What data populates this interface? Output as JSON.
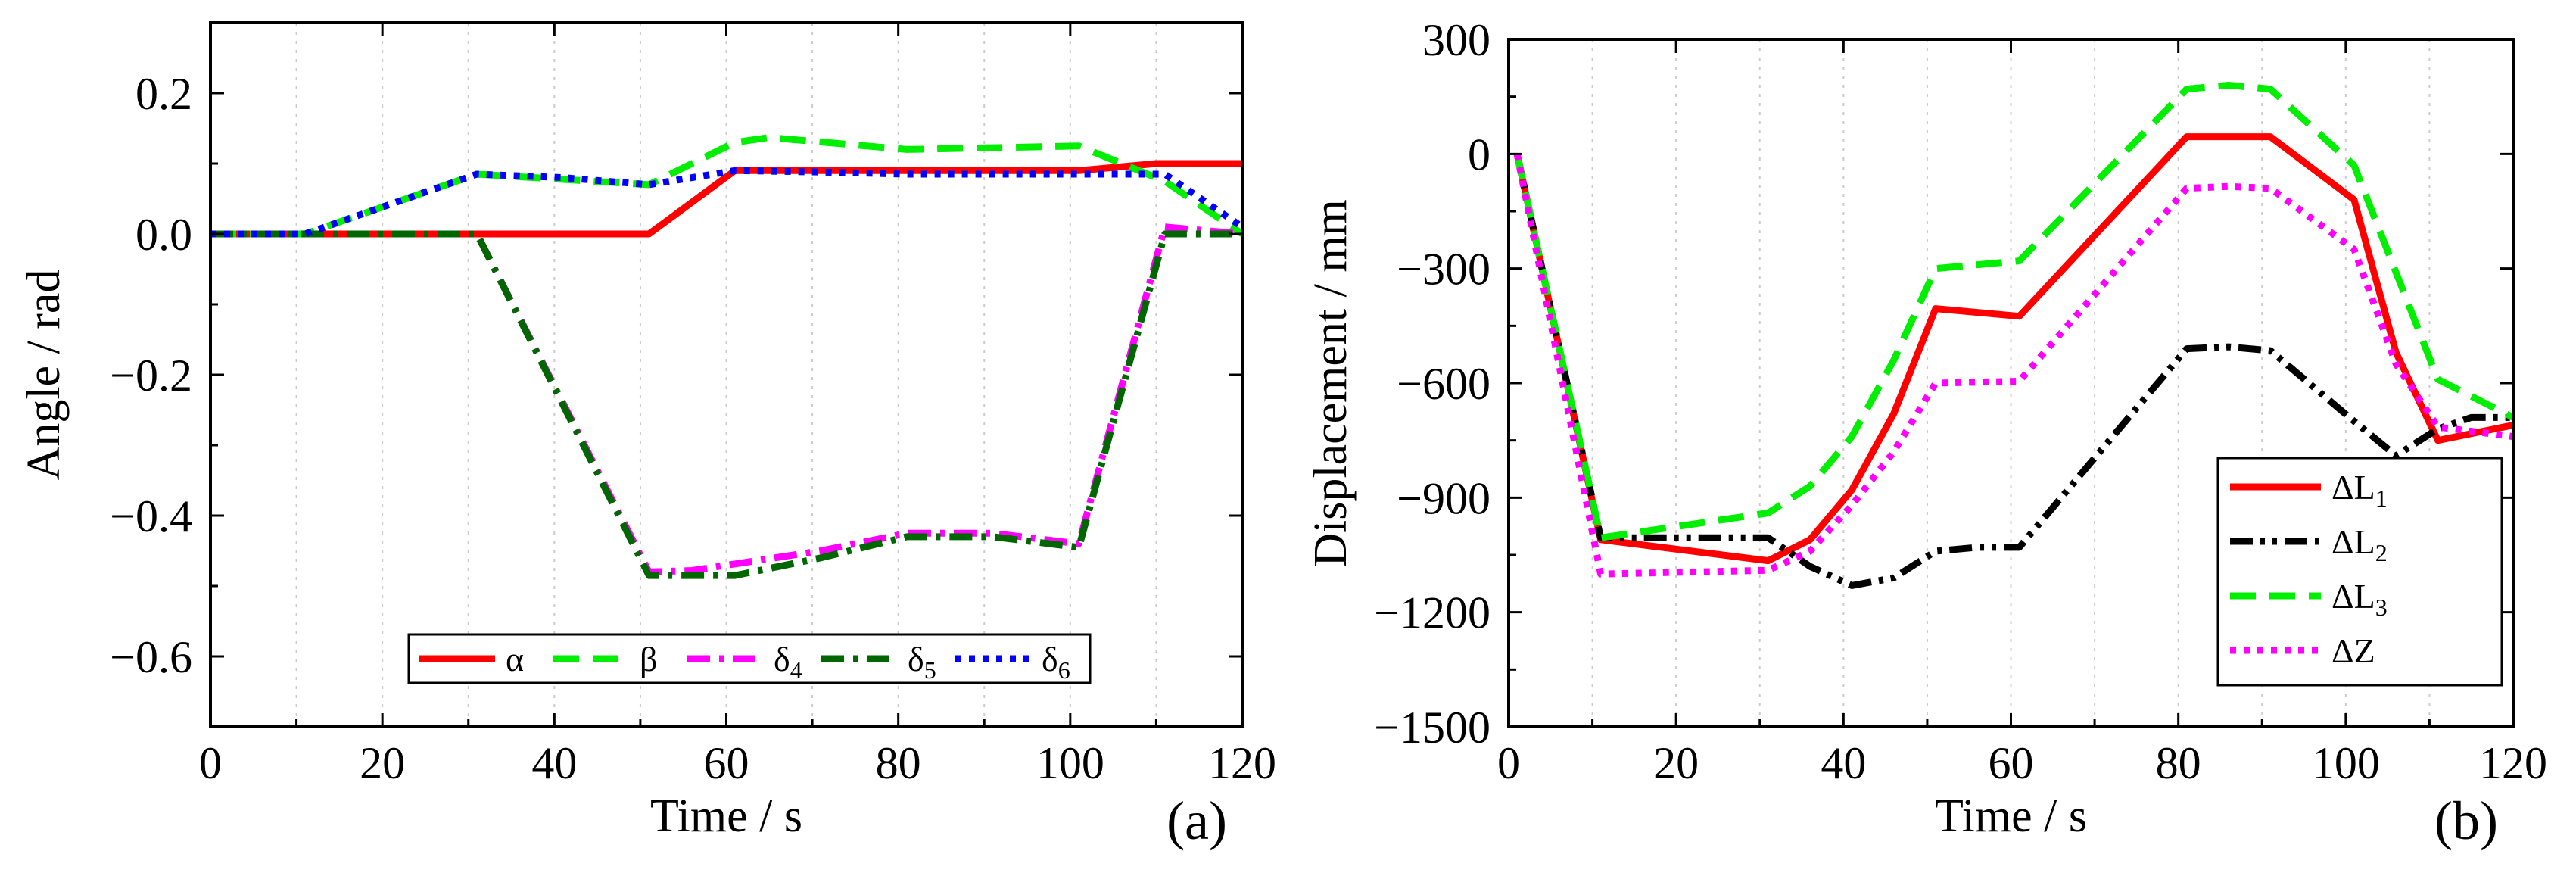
{
  "chart_data": [
    {
      "type": "line",
      "panel_label": "(a)",
      "xlabel": "Time / s",
      "ylabel": "Angle / rad",
      "xlim": [
        0,
        120
      ],
      "ylim": [
        -0.7,
        0.3
      ],
      "xticks": [
        0,
        20,
        40,
        60,
        80,
        100,
        120
      ],
      "yticks": [
        0.2,
        0.0,
        -0.2,
        -0.4,
        -0.6
      ],
      "xtick_labels": [
        "0",
        "20",
        "40",
        "60",
        "80",
        "100",
        "120"
      ],
      "ytick_labels": [
        "0.2",
        "0.0",
        "−0.2",
        "−0.4",
        "−0.6"
      ],
      "grid": "vertical dotted",
      "legend_position": "bottom-center",
      "series": [
        {
          "name": "α",
          "sub": "",
          "color": "#ff0000",
          "dash": "solid",
          "x": [
            0,
            51,
            61,
            101,
            110,
            120
          ],
          "y": [
            0.0,
            0.0,
            0.09,
            0.09,
            0.1,
            0.1
          ]
        },
        {
          "name": "β",
          "sub": "",
          "color": "#00ee00",
          "dash": "dash",
          "x": [
            0,
            11,
            31,
            51,
            61,
            65,
            81,
            101,
            111,
            120
          ],
          "y": [
            0.0,
            0.0,
            0.085,
            0.07,
            0.13,
            0.137,
            0.12,
            0.125,
            0.075,
            0.0
          ]
        },
        {
          "name": "δ",
          "sub": "4",
          "color": "#ff00ff",
          "dash": "dashdot",
          "x": [
            0,
            31,
            51,
            56,
            71,
            81,
            91,
            101,
            111,
            120
          ],
          "y": [
            0.0,
            0.0,
            -0.48,
            -0.478,
            -0.45,
            -0.425,
            -0.425,
            -0.44,
            0.01,
            0.0
          ]
        },
        {
          "name": "δ",
          "sub": "5",
          "color": "#006600",
          "dash": "dashdot",
          "x": [
            0,
            31,
            51,
            56,
            61,
            71,
            81,
            91,
            101,
            111,
            120
          ],
          "y": [
            0.0,
            0.0,
            -0.485,
            -0.485,
            -0.485,
            -0.46,
            -0.43,
            -0.43,
            -0.445,
            0.0,
            0.0
          ]
        },
        {
          "name": "δ",
          "sub": "6",
          "color": "#0000ff",
          "dash": "dot",
          "x": [
            0,
            11,
            31,
            41,
            51,
            61,
            71,
            81,
            101,
            111,
            120
          ],
          "y": [
            0.0,
            0.0,
            0.085,
            0.08,
            0.07,
            0.09,
            0.088,
            0.085,
            0.085,
            0.085,
            0.01
          ]
        }
      ]
    },
    {
      "type": "line",
      "panel_label": "(b)",
      "xlabel": "Time / s",
      "ylabel": "Displacement / mm",
      "xlim": [
        0,
        120
      ],
      "ylim": [
        -1500,
        300
      ],
      "xticks": [
        0,
        20,
        40,
        60,
        80,
        100,
        120
      ],
      "yticks": [
        300,
        0,
        -300,
        -600,
        -900,
        -1200,
        -1500
      ],
      "xtick_labels": [
        "0",
        "20",
        "40",
        "60",
        "80",
        "100",
        "120"
      ],
      "ytick_labels": [
        "300",
        "0",
        "−300",
        "−600",
        "−900",
        "−1200",
        "−1500"
      ],
      "grid": "vertical dotted",
      "legend_position": "bottom-right",
      "series": [
        {
          "name": "ΔL",
          "sub": "1",
          "color": "#ff0000",
          "dash": "solid",
          "x": [
            1,
            11,
            31,
            36,
            41,
            46,
            51,
            61,
            81,
            91,
            101,
            106,
            111,
            120
          ],
          "y": [
            0,
            -1010,
            -1065,
            -1010,
            -880,
            -680,
            -405,
            -425,
            45,
            45,
            -120,
            -520,
            -750,
            -710
          ]
        },
        {
          "name": "ΔL",
          "sub": "2",
          "color": "#000000",
          "dash": "dashdotdot",
          "x": [
            1,
            11,
            31,
            36,
            41,
            46,
            51,
            56,
            61,
            81,
            86,
            91,
            101,
            106,
            111,
            115,
            120
          ],
          "y": [
            0,
            -1005,
            -1005,
            -1080,
            -1130,
            -1110,
            -1040,
            -1030,
            -1030,
            -510,
            -505,
            -515,
            -700,
            -790,
            -720,
            -690,
            -690
          ]
        },
        {
          "name": "ΔL",
          "sub": "3",
          "color": "#00ee00",
          "dash": "dash",
          "x": [
            1,
            11,
            31,
            36,
            41,
            46,
            51,
            61,
            81,
            86,
            91,
            101,
            111,
            120
          ],
          "y": [
            0,
            -1005,
            -940,
            -870,
            -740,
            -540,
            -300,
            -280,
            170,
            180,
            170,
            -30,
            -590,
            -690
          ]
        },
        {
          "name": "ΔZ",
          "sub": "",
          "color": "#ff00ff",
          "dash": "dot",
          "x": [
            1,
            11,
            31,
            36,
            41,
            46,
            51,
            61,
            81,
            86,
            91,
            101,
            106,
            111,
            120
          ],
          "y": [
            0,
            -1100,
            -1090,
            -1040,
            -920,
            -780,
            -600,
            -595,
            -90,
            -85,
            -90,
            -250,
            -550,
            -715,
            -740
          ]
        }
      ]
    }
  ]
}
